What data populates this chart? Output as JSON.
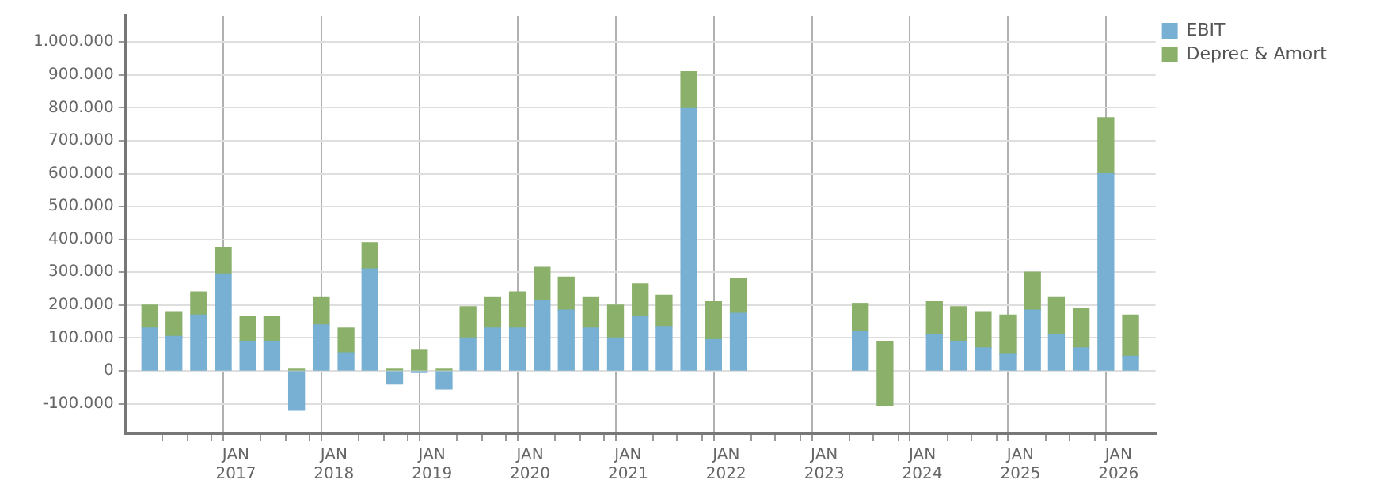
{
  "chart_data": {
    "type": "bar",
    "stacked": true,
    "grid": true,
    "legend": "top right",
    "x": [
      "2016-02-15",
      "2016-05-15",
      "2016-08-15",
      "2016-11-15",
      "2017-02-15",
      "2017-05-15",
      "2017-08-15",
      "2017-11-15",
      "2018-02-15",
      "2018-05-15",
      "2018-08-15",
      "2018-11-15",
      "2019-02-15",
      "2019-05-15",
      "2019-08-15",
      "2019-11-15",
      "2020-02-15",
      "2020-05-15",
      "2020-08-15",
      "2020-11-15",
      "2021-02-15",
      "2021-05-15",
      "2021-08-15",
      "2021-11-15",
      "2022-02-15",
      "2022-05-15",
      "2022-08-15",
      "2022-11-15",
      "2023-02-15",
      "2023-05-15",
      "2023-08-15",
      "2023-11-15",
      "2024-02-15",
      "2024-05-15",
      "2024-08-15",
      "2024-11-15",
      "2025-02-15",
      "2025-05-15",
      "2025-08-15",
      "2025-11-15",
      "2026-02-15"
    ],
    "series": [
      {
        "name": "EBIT",
        "color": "#78b0d3",
        "values": [
          130000,
          105000,
          170000,
          295000,
          90000,
          90000,
          -120000,
          140000,
          55000,
          310000,
          -40000,
          -5000,
          -55000,
          100000,
          130000,
          130000,
          215000,
          185000,
          130000,
          100000,
          165000,
          135000,
          800000,
          95000,
          175000,
          null,
          null,
          null,
          null,
          120000,
          null,
          null,
          110000,
          90000,
          70000,
          50000,
          185000,
          110000,
          70000,
          600000,
          45000
        ]
      },
      {
        "name": "Deprec & Amort",
        "color": "#8ab06a",
        "values": [
          70000,
          75000,
          70000,
          80000,
          75000,
          75000,
          5000,
          85000,
          75000,
          80000,
          5000,
          65000,
          5000,
          95000,
          95000,
          110000,
          100000,
          100000,
          95000,
          100000,
          100000,
          95000,
          110000,
          115000,
          105000,
          null,
          null,
          null,
          null,
          85000,
          195000,
          null,
          100000,
          105000,
          110000,
          120000,
          115000,
          115000,
          120000,
          170000,
          125000
        ],
        "base": [
          null,
          null,
          null,
          null,
          null,
          null,
          null,
          null,
          null,
          null,
          null,
          null,
          null,
          null,
          null,
          null,
          null,
          null,
          null,
          null,
          null,
          null,
          null,
          null,
          null,
          null,
          null,
          null,
          null,
          null,
          -105000,
          null,
          null,
          null,
          null,
          null,
          null,
          null,
          null,
          null,
          null
        ]
      }
    ],
    "xlim": [
      "2016-01-01",
      "2026-04-01"
    ],
    "xticks": [
      {
        "value": "2016-04-01",
        "label": null
      },
      {
        "value": "2016-07-01",
        "label": null
      },
      {
        "value": "2016-10-01",
        "label": null
      },
      {
        "value": "2017-01-01",
        "label": "JAN 2017"
      },
      {
        "value": "2017-04-01",
        "label": null
      },
      {
        "value": "2017-07-01",
        "label": null
      },
      {
        "value": "2017-10-01",
        "label": null
      },
      {
        "value": "2018-01-01",
        "label": "JAN 2018"
      },
      {
        "value": "2018-04-01",
        "label": null
      },
      {
        "value": "2018-07-01",
        "label": null
      },
      {
        "value": "2018-10-01",
        "label": null
      },
      {
        "value": "2019-01-01",
        "label": "JAN 2019"
      },
      {
        "value": "2019-04-01",
        "label": null
      },
      {
        "value": "2019-07-01",
        "label": null
      },
      {
        "value": "2019-10-01",
        "label": null
      },
      {
        "value": "2020-01-01",
        "label": "JAN 2020"
      },
      {
        "value": "2020-04-01",
        "label": null
      },
      {
        "value": "2020-07-01",
        "label": null
      },
      {
        "value": "2020-10-01",
        "label": null
      },
      {
        "value": "2021-01-01",
        "label": "JAN 2021"
      },
      {
        "value": "2021-04-01",
        "label": null
      },
      {
        "value": "2021-07-01",
        "label": null
      },
      {
        "value": "2021-10-01",
        "label": null
      },
      {
        "value": "2022-01-01",
        "label": "JAN 2022"
      },
      {
        "value": "2022-04-01",
        "label": null
      },
      {
        "value": "2022-07-01",
        "label": null
      },
      {
        "value": "2022-10-01",
        "label": null
      },
      {
        "value": "2023-01-01",
        "label": "JAN 2023"
      },
      {
        "value": "2023-04-01",
        "label": null
      },
      {
        "value": "2023-07-01",
        "label": null
      },
      {
        "value": "2023-10-01",
        "label": null
      },
      {
        "value": "2024-01-01",
        "label": "JAN 2024"
      },
      {
        "value": "2024-04-01",
        "label": null
      },
      {
        "value": "2024-07-01",
        "label": null
      },
      {
        "value": "2024-10-01",
        "label": null
      },
      {
        "value": "2025-01-01",
        "label": "JAN 2025"
      },
      {
        "value": "2025-04-01",
        "label": null
      },
      {
        "value": "2025-07-01",
        "label": null
      },
      {
        "value": "2025-10-01",
        "label": null
      },
      {
        "value": "2026-01-01",
        "label": "JAN 2026"
      }
    ],
    "ylim": [
      -190000,
      1080000
    ],
    "yticks": [
      {
        "value": -100000,
        "label": "-100.000"
      },
      0,
      {
        "value": 100000,
        "label": "100.000"
      },
      {
        "value": 200000,
        "label": "200.000"
      },
      {
        "value": 300000,
        "label": "300.000"
      },
      {
        "value": 400000,
        "label": "400.000"
      },
      {
        "value": 500000,
        "label": "500.000"
      },
      {
        "value": 600000,
        "label": "600.000"
      },
      {
        "value": 700000,
        "label": "700.000"
      },
      {
        "value": 800000,
        "label": "800.000"
      },
      {
        "value": 900000,
        "label": "900.000"
      },
      {
        "value": 1000000,
        "label": "1.000.000"
      }
    ]
  }
}
